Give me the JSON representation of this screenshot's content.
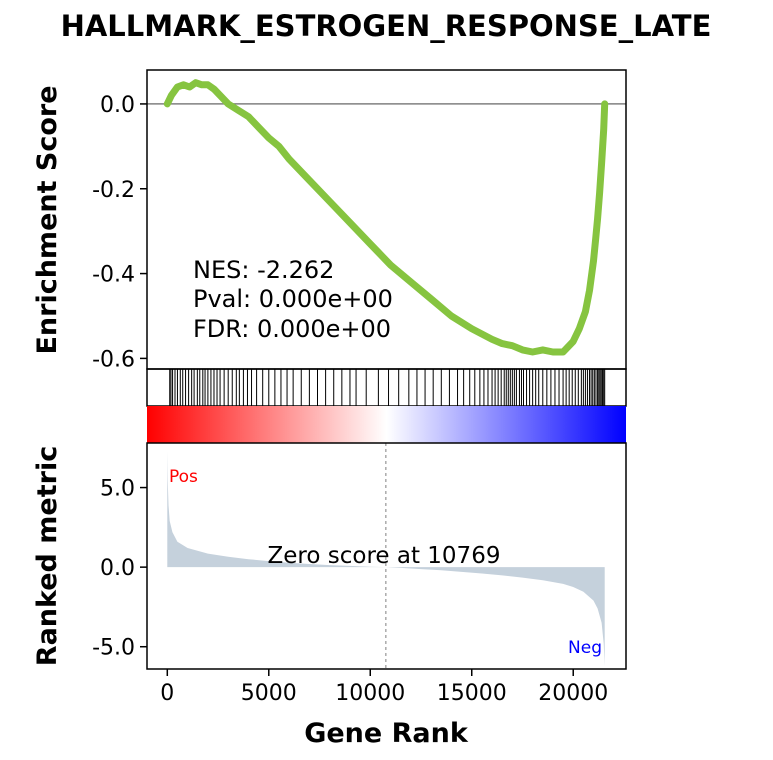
{
  "chart_data": {
    "type": "line",
    "title": "HALLMARK_ESTROGEN_RESPONSE_LATE",
    "xlabel": "Gene Rank",
    "xlim": [
      -1000,
      22600
    ],
    "x_ticks": [
      0,
      5000,
      10000,
      15000,
      20000
    ],
    "x_tick_labels": [
      "0",
      "5000",
      "10000",
      "15000",
      "20000"
    ],
    "enrichment": {
      "ylabel": "Enrichment Score",
      "ylim": [
        -0.625,
        0.08
      ],
      "y_ticks": [
        0.0,
        -0.2,
        -0.4,
        -0.6
      ],
      "y_tick_labels": [
        "0.0",
        "-0.2",
        "-0.4",
        "-0.6"
      ],
      "line_color": "#86c440",
      "x": [
        0,
        200,
        500,
        800,
        1100,
        1400,
        1700,
        2000,
        2300,
        2600,
        3000,
        3500,
        4000,
        4500,
        5000,
        5500,
        6000,
        7000,
        8000,
        9000,
        10000,
        11000,
        12000,
        13000,
        14000,
        15000,
        16000,
        16500,
        17000,
        17500,
        18000,
        18500,
        19000,
        19500,
        20000,
        20300,
        20600,
        20800,
        21000,
        21100,
        21200,
        21300,
        21400,
        21500,
        21550
      ],
      "y": [
        0.0,
        0.02,
        0.04,
        0.045,
        0.04,
        0.05,
        0.045,
        0.045,
        0.035,
        0.02,
        0.0,
        -0.015,
        -0.03,
        -0.055,
        -0.08,
        -0.1,
        -0.13,
        -0.18,
        -0.23,
        -0.28,
        -0.33,
        -0.38,
        -0.42,
        -0.46,
        -0.5,
        -0.53,
        -0.555,
        -0.565,
        -0.57,
        -0.58,
        -0.585,
        -0.58,
        -0.585,
        -0.585,
        -0.56,
        -0.53,
        -0.49,
        -0.44,
        -0.37,
        -0.32,
        -0.27,
        -0.21,
        -0.14,
        -0.06,
        0.0
      ],
      "nes_text": "NES: -2.262",
      "pval_text": "Pval: 0.000e+00",
      "fdr_text": "FDR: 0.000e+00"
    },
    "hits": [
      120,
      180,
      260,
      380,
      500,
      640,
      760,
      900,
      1050,
      1200,
      1320,
      1480,
      1600,
      1750,
      1860,
      2000,
      2150,
      2300,
      2450,
      2600,
      2800,
      3000,
      3200,
      3400,
      3550,
      3750,
      3950,
      4150,
      4400,
      4700,
      5000,
      5300,
      5600,
      5900,
      6200,
      6600,
      7000,
      7400,
      7800,
      8200,
      8600,
      9000,
      9300,
      9800,
      10400,
      10900,
      11400,
      11900,
      12300,
      12700,
      13100,
      13500,
      13900,
      14300,
      14600,
      14900,
      15150,
      15400,
      15600,
      15800,
      16000,
      16150,
      16300,
      16450,
      16600,
      16700,
      16800,
      16900,
      17000,
      17100,
      17200,
      17350,
      17450,
      17550,
      17700,
      17850,
      18000,
      18150,
      18300,
      18500,
      18700,
      18900,
      19100,
      19300,
      19500,
      19650,
      19800,
      19950,
      20100,
      20250,
      20400,
      20500,
      20600,
      20700,
      20800,
      20880,
      20960,
      21040,
      21120,
      21200,
      21260,
      21320,
      21380,
      21440,
      21500,
      21550
    ],
    "ranked_metric": {
      "ylabel": "Ranked metric",
      "ylim": [
        -6.4,
        7.8
      ],
      "y_ticks": [
        5.0,
        0.0,
        -5.0
      ],
      "y_tick_labels": [
        "5.0",
        "0.0",
        "-5.0"
      ],
      "fill_color": "#c5d1dc",
      "x": [
        0,
        20,
        60,
        120,
        250,
        500,
        1000,
        2000,
        3000,
        4000,
        5000,
        6000,
        7000,
        8000,
        9000,
        10000,
        10769,
        11500,
        12500,
        13500,
        14500,
        15500,
        16500,
        17500,
        18500,
        19500,
        20000,
        20500,
        21000,
        21200,
        21400,
        21500,
        21550
      ],
      "y": [
        7.3,
        5.5,
        3.9,
        2.9,
        2.2,
        1.6,
        1.2,
        0.85,
        0.65,
        0.5,
        0.38,
        0.28,
        0.2,
        0.13,
        0.08,
        0.03,
        0.0,
        -0.05,
        -0.12,
        -0.2,
        -0.3,
        -0.4,
        -0.52,
        -0.66,
        -0.82,
        -1.05,
        -1.25,
        -1.55,
        -2.1,
        -2.6,
        -3.5,
        -4.8,
        -6.2
      ],
      "zero_rank": 10769,
      "zero_text": "Zero score at 10769",
      "pos_label": "Pos",
      "neg_label": "Neg",
      "pos_color": "#ff0000",
      "neg_color": "#0000ff"
    },
    "colorbar": {
      "colors": [
        "#ff0000",
        "#ffffff",
        "#0000ff"
      ]
    }
  }
}
